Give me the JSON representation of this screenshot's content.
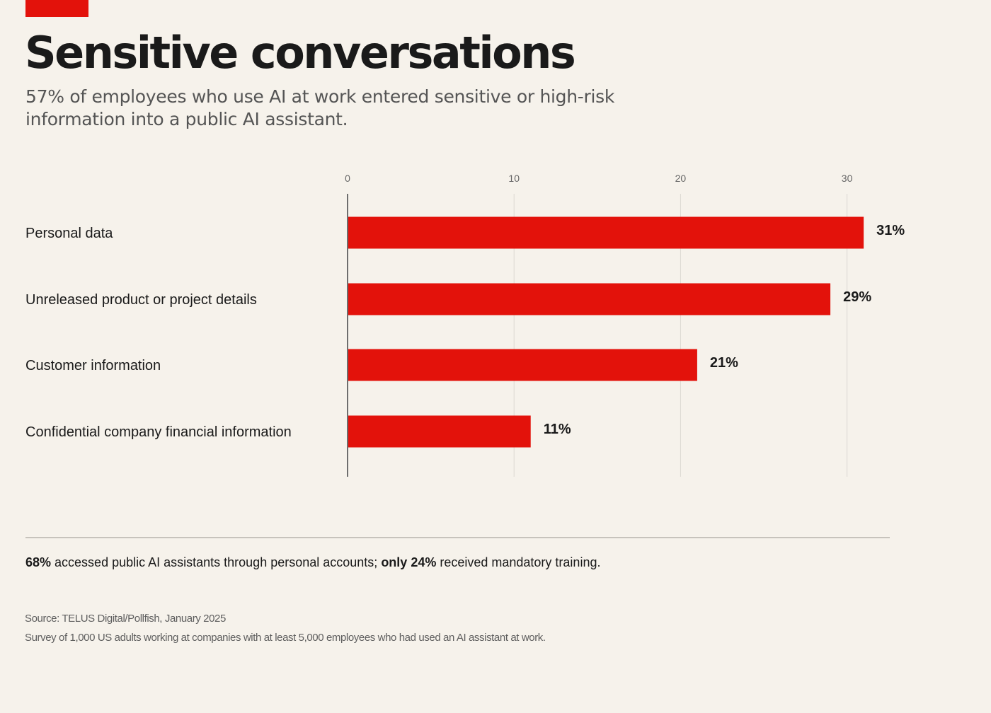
{
  "header": {
    "title": "Sensitive conversations",
    "subtitle": "57% of employees who use AI at work entered sensitive or high-risk information into a public AI assistant."
  },
  "colors": {
    "accent": "#e3120b",
    "bar": "#e3120b",
    "background": "#f6f2eb",
    "grid": "#dcd8d1",
    "axis": "#6e6e6e"
  },
  "chart_data": {
    "type": "bar",
    "orientation": "horizontal",
    "categories": [
      "Personal data",
      "Unreleased product or project details",
      "Customer information",
      "Confidential company financial information"
    ],
    "values": [
      31,
      29,
      21,
      11
    ],
    "value_labels": [
      "31%",
      "29%",
      "21%",
      "11%"
    ],
    "x_ticks": [
      0,
      10,
      20,
      30
    ],
    "xlim": [
      0,
      33
    ],
    "grid": true,
    "title": "Sensitive conversations",
    "xlabel": "",
    "ylabel": ""
  },
  "note": {
    "stat1": "68%",
    "text1": " accessed public AI assistants through personal accounts; ",
    "stat2": "only 24%",
    "text2": " received mandatory training."
  },
  "footer": {
    "source": "Source: TELUS Digital/Pollfish, January 2025",
    "survey": "Survey of 1,000 US adults working at companies with at least 5,000 employees who had used an AI assistant at work."
  }
}
